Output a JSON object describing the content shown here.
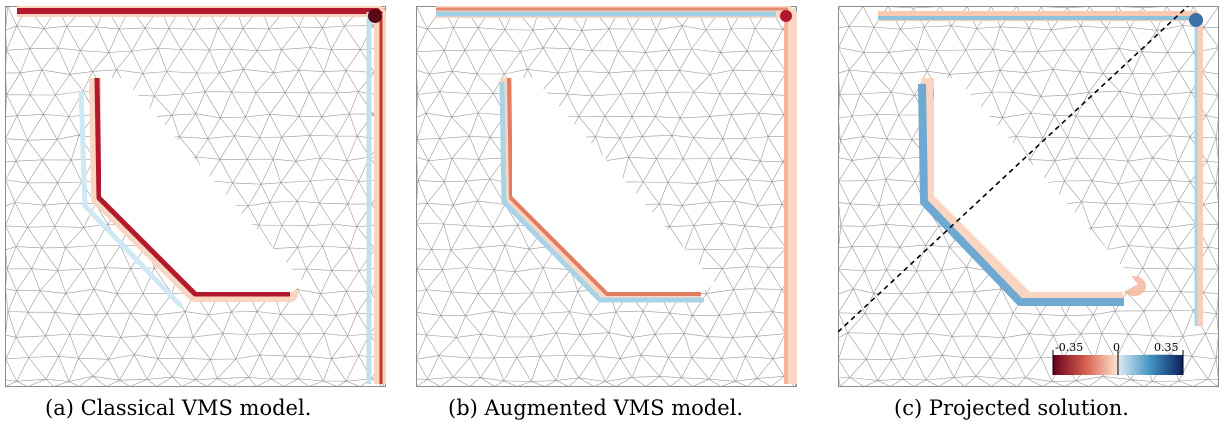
{
  "panels": [
    {
      "id": "a",
      "caption": "(a) Classical VMS model."
    },
    {
      "id": "b",
      "caption": "(b) Augmented VMS model."
    },
    {
      "id": "c",
      "caption": "(c) Projected solution."
    }
  ],
  "colorbar": {
    "min_label": "-0.35",
    "mid_label": "0",
    "max_label": "0.35",
    "min": -0.35,
    "max": 0.35,
    "negative_color": "#7f0000",
    "positive_color": "#0b1f5c"
  },
  "colors": {
    "red_strong": "#b2182b",
    "red_light": "#f4a582",
    "blue_light": "#92c5de",
    "blue_strong": "#2166ac",
    "mesh": "#9a9a9a"
  }
}
